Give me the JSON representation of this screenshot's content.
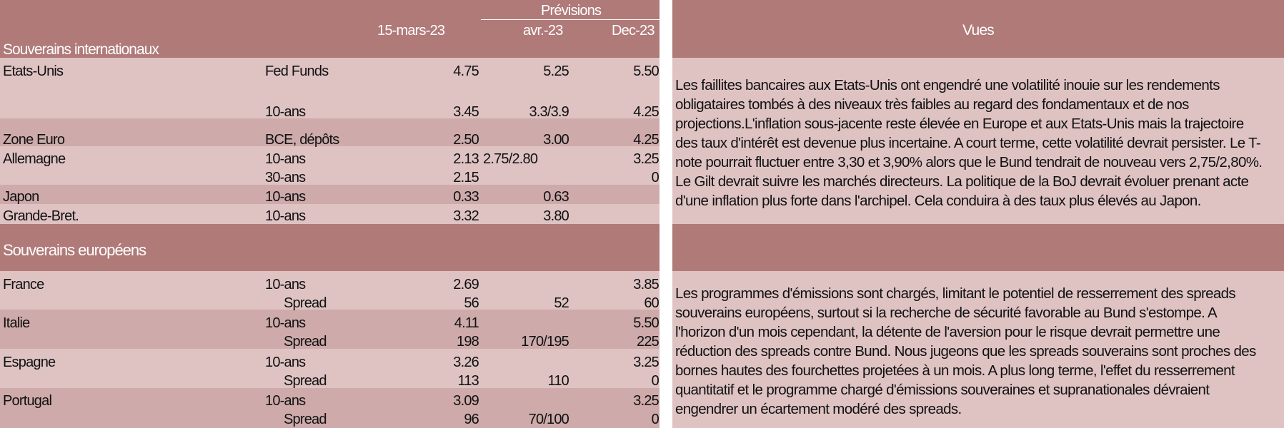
{
  "header": {
    "forecasts_label": "Prévisions",
    "col_date": "15-mars-23",
    "col_avr": "avr.-23",
    "col_dec": "Dec-23",
    "views_label": "Vues"
  },
  "sections": {
    "international": "Souverains internationaux",
    "european": "Souverains européens"
  },
  "international_rows": [
    {
      "country": "Etats-Unis",
      "instrument": "Fed Funds",
      "current": "4.75",
      "avr": "5.25",
      "dec": "5.50"
    },
    {
      "country": "",
      "instrument": "10-ans",
      "current": "3.45",
      "avr": "3.3/3.9",
      "dec": "4.25"
    },
    {
      "country": "Zone Euro",
      "instrument": "BCE, dépôts",
      "current": "2.50",
      "avr": "3.00",
      "dec": "4.25"
    },
    {
      "country": "Allemagne",
      "instrument": "10-ans",
      "current": "2.13",
      "avr": "2.75/2.80",
      "dec": "3.25"
    },
    {
      "country": "",
      "instrument": "30-ans",
      "current": "2.15",
      "avr": "",
      "dec": "0"
    },
    {
      "country": "Japon",
      "instrument": "10-ans",
      "current": "0.33",
      "avr": "0.63",
      "dec": ""
    },
    {
      "country": "Grande-Bret.",
      "instrument": "10-ans",
      "current": "3.32",
      "avr": "3.80",
      "dec": ""
    }
  ],
  "european_rows": [
    {
      "country": "France",
      "instrument": "10-ans",
      "current": "2.69",
      "avr": "",
      "dec": "3.85"
    },
    {
      "country": "",
      "instrument": "Spread",
      "current": "56",
      "avr": "52",
      "dec": "60"
    },
    {
      "country": "Italie",
      "instrument": "10-ans",
      "current": "4.11",
      "avr": "",
      "dec": "5.50"
    },
    {
      "country": "",
      "instrument": "Spread",
      "current": "198",
      "avr": "170/195",
      "dec": "225"
    },
    {
      "country": "Espagne",
      "instrument": "10-ans",
      "current": "3.26",
      "avr": "",
      "dec": "3.25"
    },
    {
      "country": "",
      "instrument": "Spread",
      "current": "113",
      "avr": "110",
      "dec": "0"
    },
    {
      "country": "Portugal",
      "instrument": "10-ans",
      "current": "3.09",
      "avr": "",
      "dec": "3.25"
    },
    {
      "country": "",
      "instrument": "Spread",
      "current": "96",
      "avr": "70/100",
      "dec": "0"
    }
  ],
  "views": {
    "international_lines": [
      "Les faillites bancaires aux Etats-Unis ont engendré une volatilité inouie sur les rendements",
      "obligataires tombés à des niveaux très faibles au regard des fondamentaux et de nos",
      "projections.L'inflation sous-jacente reste élevée en Europe et aux Etats-Unis mais la trajectoire",
      "des taux d'intérêt est devenue plus incertaine. A court terme, cette volatilité devrait persister. Le T-",
      "note pourrait fluctuer entre 3,30 et 3,90% alors que le Bund tendrait de nouveau vers 2,75/2,80%.",
      "Le Gilt devrait suivre les marchés directeurs. La politique de la BoJ devrait évoluer prenant acte",
      "d'une inflation plus forte dans l'archipel. Cela conduira à des taux plus élevés au Japon."
    ],
    "european_lines": [
      "Les programmes d'émissions sont chargés, limitant le potentiel de resserrement des spreads",
      "souverains européens, surtout si la recherche de sécurité favorable au Bund s'estompe. A",
      "l'horizon d'un mois cependant, la détente de l'aversion pour le risque devrait permettre une",
      "réduction des spreads contre Bund. Nous jugeons que les spreads souverains sont proches des",
      "bornes hautes des fourchettes projetées à un mois. A plus long terme, l'effet du resserrement",
      "quantitatif et le programme chargé d'émissions souveraines et supranationales dévraient",
      "engendrer un écartement modéré des spreads."
    ]
  },
  "colors": {
    "header": "#b07a79",
    "light_row": "#dfc3c3",
    "mid_row": "#ceaaaa"
  }
}
